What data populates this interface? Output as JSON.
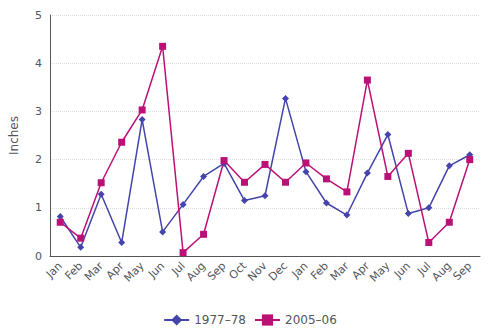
{
  "chart_data": {
    "type": "line",
    "categories": [
      "Jan",
      "Feb",
      "Mar",
      "Apr",
      "May",
      "Jun",
      "Jul",
      "Aug",
      "Sep",
      "Oct",
      "Nov",
      "Dec",
      "Jan",
      "Feb",
      "Mar",
      "Apr",
      "May",
      "Jun",
      "Jul",
      "Aug",
      "Sep"
    ],
    "series": [
      {
        "name": "1977–78",
        "color": "#4444aa",
        "marker": "diamond",
        "values": [
          0.82,
          0.18,
          1.28,
          0.28,
          2.83,
          0.5,
          1.07,
          1.65,
          1.92,
          1.15,
          1.25,
          3.27,
          1.75,
          1.1,
          0.85,
          1.72,
          2.52,
          0.88,
          1.0,
          1.87,
          2.1
        ]
      },
      {
        "name": "2005–06",
        "color": "#bb1177",
        "marker": "square",
        "values": [
          0.7,
          0.37,
          1.52,
          2.36,
          3.03,
          4.35,
          0.07,
          0.45,
          1.98,
          1.53,
          1.9,
          1.53,
          1.93,
          1.6,
          1.33,
          3.65,
          1.65,
          2.13,
          0.28,
          0.7,
          2.0
        ]
      }
    ],
    "ylabel": "Inches",
    "ylim": [
      0,
      5
    ],
    "yticks": [
      0,
      1,
      2,
      3,
      4,
      5
    ],
    "grid": true,
    "legend": "bottom"
  }
}
